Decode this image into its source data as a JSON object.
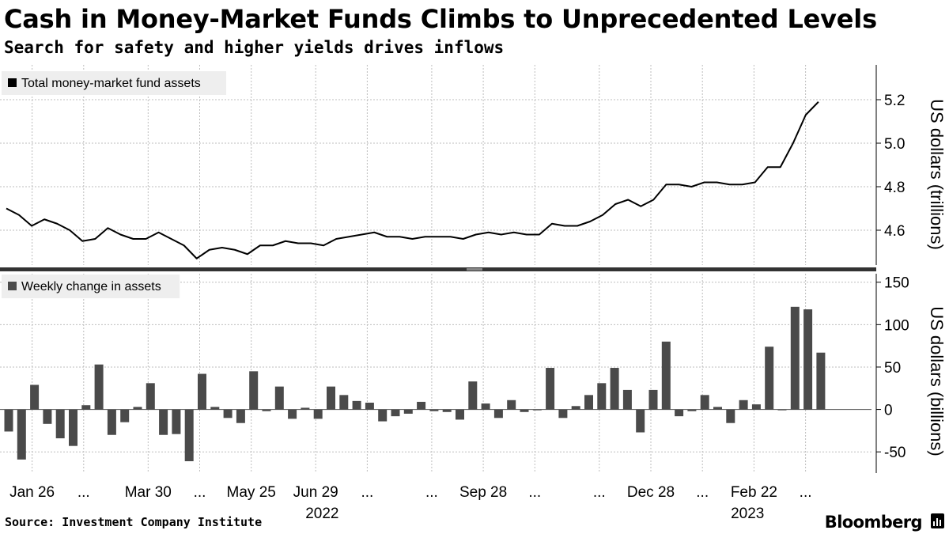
{
  "title": "Cash in Money-Market Funds Climbs to Unprecedented Levels",
  "subtitle": "Search for safety and higher yields drives inflows",
  "source": "Source: Investment Company Institute",
  "brand": "Bloomberg",
  "icon": "bar-chart-icon",
  "colors": {
    "line": "#000000",
    "bars": "#4a4a4a",
    "legend_bg": "#eeeeee",
    "grid": "#bdbdbd"
  },
  "chart_data": [
    {
      "type": "line",
      "legend": "Total money-market fund assets",
      "ylabel": "US dollars (trillions)",
      "ylim": [
        4.44,
        5.36
      ],
      "yticks": [
        "5.2",
        "5.0",
        "4.8",
        "4.6"
      ],
      "ytick_values": [
        5.2,
        5.0,
        4.8,
        4.6
      ],
      "grid": true,
      "legend_position": "top-left",
      "series": [
        {
          "name": "Total money-market fund assets",
          "values": [
            4.7,
            4.67,
            4.62,
            4.65,
            4.63,
            4.6,
            4.55,
            4.56,
            4.61,
            4.58,
            4.56,
            4.56,
            4.59,
            4.56,
            4.53,
            4.47,
            4.51,
            4.52,
            4.51,
            4.49,
            4.53,
            4.53,
            4.55,
            4.54,
            4.54,
            4.53,
            4.56,
            4.57,
            4.58,
            4.59,
            4.57,
            4.57,
            4.56,
            4.57,
            4.57,
            4.57,
            4.56,
            4.58,
            4.59,
            4.58,
            4.59,
            4.58,
            4.58,
            4.63,
            4.62,
            4.62,
            4.64,
            4.67,
            4.72,
            4.74,
            4.71,
            4.74,
            4.81,
            4.81,
            4.8,
            4.82,
            4.82,
            4.81,
            4.81,
            4.82,
            4.89,
            4.89,
            5.0,
            5.13,
            5.19
          ]
        }
      ]
    },
    {
      "type": "bar",
      "legend": "Weekly change in assets",
      "ylabel": "US dollars (billions)",
      "ylim": [
        -75,
        160
      ],
      "yticks": [
        "150",
        "100",
        "50",
        "0",
        "-50"
      ],
      "ytick_values": [
        150,
        100,
        50,
        0,
        -50
      ],
      "grid": true,
      "legend_position": "top-left",
      "series": [
        {
          "name": "Weekly change in assets",
          "values": [
            -26,
            -59,
            29,
            -17,
            -34,
            -43,
            5,
            53,
            -30,
            -15,
            3,
            31,
            -30,
            -29,
            -61,
            42,
            3,
            -10,
            -16,
            45,
            -2,
            27,
            -11,
            2,
            -11,
            27,
            17,
            10,
            8,
            -14,
            -8,
            -5,
            9,
            -2,
            -3,
            -12,
            33,
            7,
            -10,
            11,
            -3,
            -1,
            49,
            -10,
            4,
            17,
            31,
            49,
            23,
            -27,
            23,
            80,
            -8,
            -2,
            17,
            3,
            -16,
            11,
            6,
            74,
            -1,
            121,
            118,
            67
          ]
        }
      ]
    }
  ],
  "x_axis": {
    "labels": [
      {
        "text": "Jan 26",
        "week": 2
      },
      {
        "text": "...",
        "week": 6
      },
      {
        "text": "Mar 30",
        "week": 11
      },
      {
        "text": "...",
        "week": 15
      },
      {
        "text": "May 25",
        "week": 19
      },
      {
        "text": "Jun 29",
        "week": 24
      },
      {
        "text": "...",
        "week": 28
      },
      {
        "text": "...",
        "week": 33
      },
      {
        "text": "Sep 28",
        "week": 37
      },
      {
        "text": "...",
        "week": 41
      },
      {
        "text": "...",
        "week": 46
      },
      {
        "text": "Dec 28",
        "week": 50
      },
      {
        "text": "...",
        "week": 54
      },
      {
        "text": "Feb 22",
        "week": 58
      },
      {
        "text": "...",
        "week": 62
      }
    ],
    "years": [
      {
        "text": "2022",
        "week": 24.5
      },
      {
        "text": "2023",
        "week": 57.5
      }
    ]
  }
}
